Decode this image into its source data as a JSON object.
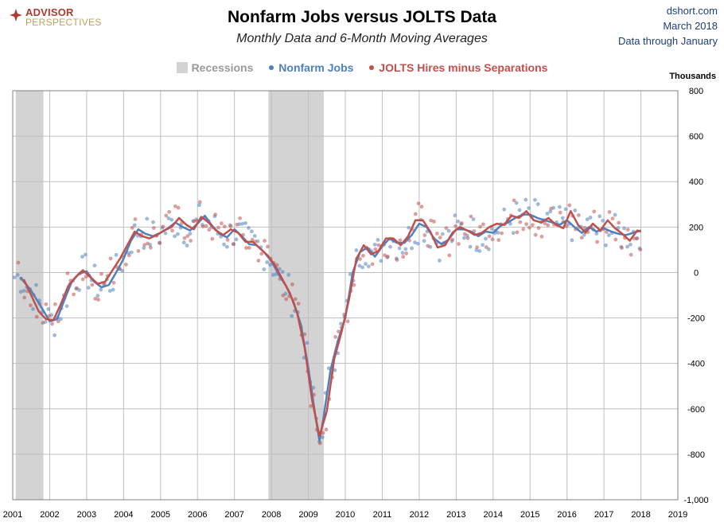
{
  "header": {
    "logo_line1": "ADVISOR",
    "logo_line2": "PERSPECTIVES",
    "source_line1": "dshort.com",
    "source_line2": "March 2018",
    "source_line3": "Data through January"
  },
  "chart_data": {
    "type": "scatter",
    "title": "Nonfarm Jobs versus JOLTS Data",
    "subtitle": "Monthly Data and 6-Month Moving Averages",
    "ylabel": "Thousands",
    "ylim": [
      -1000,
      800
    ],
    "yticks": [
      800,
      600,
      400,
      200,
      0,
      -200,
      -400,
      -600,
      -800,
      -1000
    ],
    "ytick_labels": [
      "800",
      "600",
      "400",
      "200",
      "0",
      "-200",
      "-400",
      "-600",
      "-800",
      "-1,000"
    ],
    "xlim": [
      2001,
      2019
    ],
    "xticks": [
      2001,
      2002,
      2003,
      2004,
      2005,
      2006,
      2007,
      2008,
      2009,
      2010,
      2011,
      2012,
      2013,
      2014,
      2015,
      2016,
      2017,
      2018,
      2019
    ],
    "grid": true,
    "legend_position": "top-center",
    "recessions": [
      {
        "label": "Recessions",
        "start": 2001.08,
        "end": 2001.83
      },
      {
        "label": "Recessions",
        "start": 2007.92,
        "end": 2009.42
      }
    ],
    "series": [
      {
        "name": "Nonfarm Jobs",
        "color": "#4f81bd",
        "markers": "monthly",
        "moving_average": [
          [
            2001.2,
            -20
          ],
          [
            2001.5,
            -80
          ],
          [
            2001.8,
            -160
          ],
          [
            2002.0,
            -215
          ],
          [
            2002.2,
            -205
          ],
          [
            2002.4,
            -120
          ],
          [
            2002.6,
            -40
          ],
          [
            2002.8,
            -5
          ],
          [
            2003.0,
            5
          ],
          [
            2003.2,
            -40
          ],
          [
            2003.4,
            -65
          ],
          [
            2003.6,
            -55
          ],
          [
            2003.8,
            0
          ],
          [
            2004.0,
            60
          ],
          [
            2004.2,
            140
          ],
          [
            2004.4,
            190
          ],
          [
            2004.6,
            170
          ],
          [
            2004.8,
            160
          ],
          [
            2005.0,
            175
          ],
          [
            2005.2,
            195
          ],
          [
            2005.4,
            220
          ],
          [
            2005.6,
            200
          ],
          [
            2005.8,
            185
          ],
          [
            2006.0,
            215
          ],
          [
            2006.2,
            250
          ],
          [
            2006.4,
            205
          ],
          [
            2006.6,
            170
          ],
          [
            2006.8,
            155
          ],
          [
            2007.0,
            190
          ],
          [
            2007.2,
            160
          ],
          [
            2007.4,
            125
          ],
          [
            2007.6,
            120
          ],
          [
            2007.8,
            90
          ],
          [
            2008.0,
            50
          ],
          [
            2008.2,
            -10
          ],
          [
            2008.4,
            -60
          ],
          [
            2008.6,
            -130
          ],
          [
            2008.8,
            -230
          ],
          [
            2009.0,
            -420
          ],
          [
            2009.2,
            -640
          ],
          [
            2009.3,
            -740
          ],
          [
            2009.4,
            -650
          ],
          [
            2009.6,
            -430
          ],
          [
            2009.8,
            -300
          ],
          [
            2010.0,
            -200
          ],
          [
            2010.2,
            0
          ],
          [
            2010.4,
            90
          ],
          [
            2010.6,
            110
          ],
          [
            2010.8,
            70
          ],
          [
            2011.0,
            115
          ],
          [
            2011.2,
            150
          ],
          [
            2011.4,
            130
          ],
          [
            2011.6,
            130
          ],
          [
            2011.8,
            165
          ],
          [
            2012.0,
            215
          ],
          [
            2012.2,
            200
          ],
          [
            2012.4,
            150
          ],
          [
            2012.6,
            125
          ],
          [
            2012.8,
            145
          ],
          [
            2013.0,
            190
          ],
          [
            2013.2,
            190
          ],
          [
            2013.4,
            180
          ],
          [
            2013.6,
            160
          ],
          [
            2013.8,
            180
          ],
          [
            2014.0,
            175
          ],
          [
            2014.2,
            205
          ],
          [
            2014.4,
            220
          ],
          [
            2014.6,
            240
          ],
          [
            2014.8,
            255
          ],
          [
            2015.0,
            255
          ],
          [
            2015.2,
            240
          ],
          [
            2015.4,
            230
          ],
          [
            2015.6,
            220
          ],
          [
            2015.8,
            210
          ],
          [
            2016.0,
            230
          ],
          [
            2016.2,
            200
          ],
          [
            2016.4,
            175
          ],
          [
            2016.6,
            200
          ],
          [
            2016.8,
            180
          ],
          [
            2017.0,
            195
          ],
          [
            2017.2,
            180
          ],
          [
            2017.4,
            170
          ],
          [
            2017.6,
            165
          ],
          [
            2017.8,
            175
          ],
          [
            2018.0,
            185
          ]
        ]
      },
      {
        "name": "JOLTS Hires minus Separations",
        "color": "#c0504d",
        "markers": "monthly",
        "moving_average": [
          [
            2001.3,
            -30
          ],
          [
            2001.5,
            -100
          ],
          [
            2001.7,
            -170
          ],
          [
            2001.9,
            -205
          ],
          [
            2002.1,
            -210
          ],
          [
            2002.3,
            -140
          ],
          [
            2002.5,
            -60
          ],
          [
            2002.7,
            -20
          ],
          [
            2002.9,
            10
          ],
          [
            2003.1,
            -20
          ],
          [
            2003.3,
            -50
          ],
          [
            2003.5,
            -40
          ],
          [
            2003.7,
            10
          ],
          [
            2003.9,
            60
          ],
          [
            2004.1,
            120
          ],
          [
            2004.3,
            180
          ],
          [
            2004.5,
            160
          ],
          [
            2004.7,
            150
          ],
          [
            2004.9,
            165
          ],
          [
            2005.1,
            185
          ],
          [
            2005.3,
            200
          ],
          [
            2005.5,
            240
          ],
          [
            2005.7,
            210
          ],
          [
            2005.9,
            190
          ],
          [
            2006.1,
            245
          ],
          [
            2006.3,
            220
          ],
          [
            2006.5,
            185
          ],
          [
            2006.7,
            165
          ],
          [
            2006.9,
            190
          ],
          [
            2007.1,
            175
          ],
          [
            2007.3,
            135
          ],
          [
            2007.5,
            135
          ],
          [
            2007.7,
            105
          ],
          [
            2007.9,
            75
          ],
          [
            2008.1,
            30
          ],
          [
            2008.3,
            -30
          ],
          [
            2008.5,
            -90
          ],
          [
            2008.7,
            -180
          ],
          [
            2008.9,
            -330
          ],
          [
            2009.1,
            -560
          ],
          [
            2009.3,
            -720
          ],
          [
            2009.5,
            -610
          ],
          [
            2009.7,
            -380
          ],
          [
            2009.9,
            -260
          ],
          [
            2010.1,
            -120
          ],
          [
            2010.3,
            60
          ],
          [
            2010.5,
            120
          ],
          [
            2010.7,
            80
          ],
          [
            2010.9,
            95
          ],
          [
            2011.1,
            150
          ],
          [
            2011.3,
            150
          ],
          [
            2011.5,
            120
          ],
          [
            2011.7,
            160
          ],
          [
            2011.9,
            230
          ],
          [
            2012.1,
            230
          ],
          [
            2012.3,
            180
          ],
          [
            2012.5,
            110
          ],
          [
            2012.7,
            120
          ],
          [
            2012.9,
            175
          ],
          [
            2013.1,
            200
          ],
          [
            2013.3,
            185
          ],
          [
            2013.5,
            165
          ],
          [
            2013.7,
            175
          ],
          [
            2013.9,
            200
          ],
          [
            2014.1,
            215
          ],
          [
            2014.3,
            210
          ],
          [
            2014.5,
            250
          ],
          [
            2014.7,
            240
          ],
          [
            2014.9,
            270
          ],
          [
            2015.1,
            230
          ],
          [
            2015.3,
            220
          ],
          [
            2015.5,
            240
          ],
          [
            2015.7,
            210
          ],
          [
            2015.9,
            195
          ],
          [
            2016.1,
            270
          ],
          [
            2016.3,
            210
          ],
          [
            2016.5,
            175
          ],
          [
            2016.7,
            215
          ],
          [
            2016.9,
            185
          ],
          [
            2017.1,
            230
          ],
          [
            2017.3,
            195
          ],
          [
            2017.5,
            170
          ],
          [
            2017.7,
            140
          ],
          [
            2017.9,
            185
          ],
          [
            2018.0,
            180
          ]
        ]
      }
    ]
  }
}
